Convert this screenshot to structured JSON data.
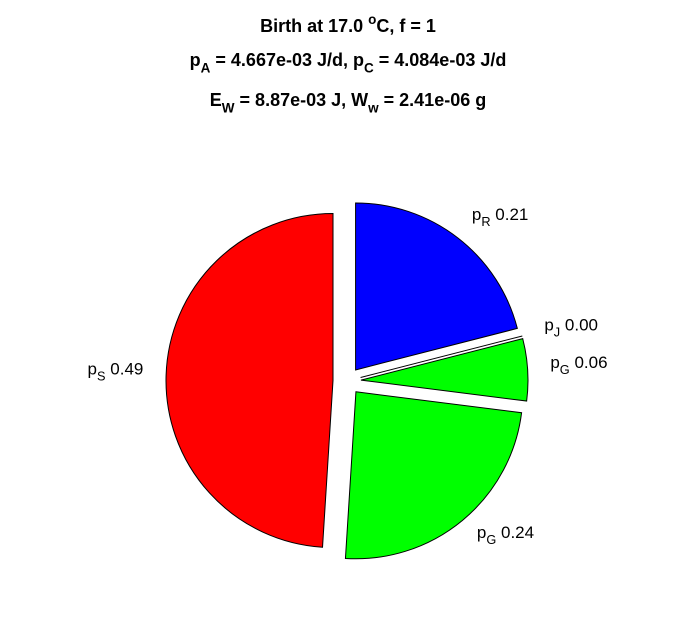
{
  "chart_data": {
    "type": "pie",
    "title": [
      [
        "Birth at 17.0 ",
        {
          "sup": "o"
        },
        "C, f = 1"
      ],
      [
        "p",
        {
          "sub": "A"
        },
        " = 4.667e-03 J/d, p",
        {
          "sub": "C"
        },
        " = 4.084e-03 J/d"
      ],
      [
        "E",
        {
          "sub": "W"
        },
        " = 8.87e-03 J, W",
        {
          "sub": "w"
        },
        " = 2.41e-06 g"
      ]
    ],
    "categories": [
      [
        "p",
        {
          "sub": "R"
        }
      ],
      [
        "p",
        {
          "sub": "J"
        }
      ],
      [
        "p",
        {
          "sub": "G"
        }
      ],
      [
        "p",
        {
          "sub": "G"
        }
      ],
      [
        "p",
        {
          "sub": "S"
        }
      ]
    ],
    "values": [
      0.21,
      0.0,
      0.06,
      0.24,
      0.49
    ],
    "value_labels": [
      "0.21",
      "0.00",
      "0.06",
      "0.24",
      "0.49"
    ],
    "colors": [
      "#0000ff",
      "#ffffff",
      "#00ff00",
      "#00ff00",
      "#ff0000"
    ]
  }
}
